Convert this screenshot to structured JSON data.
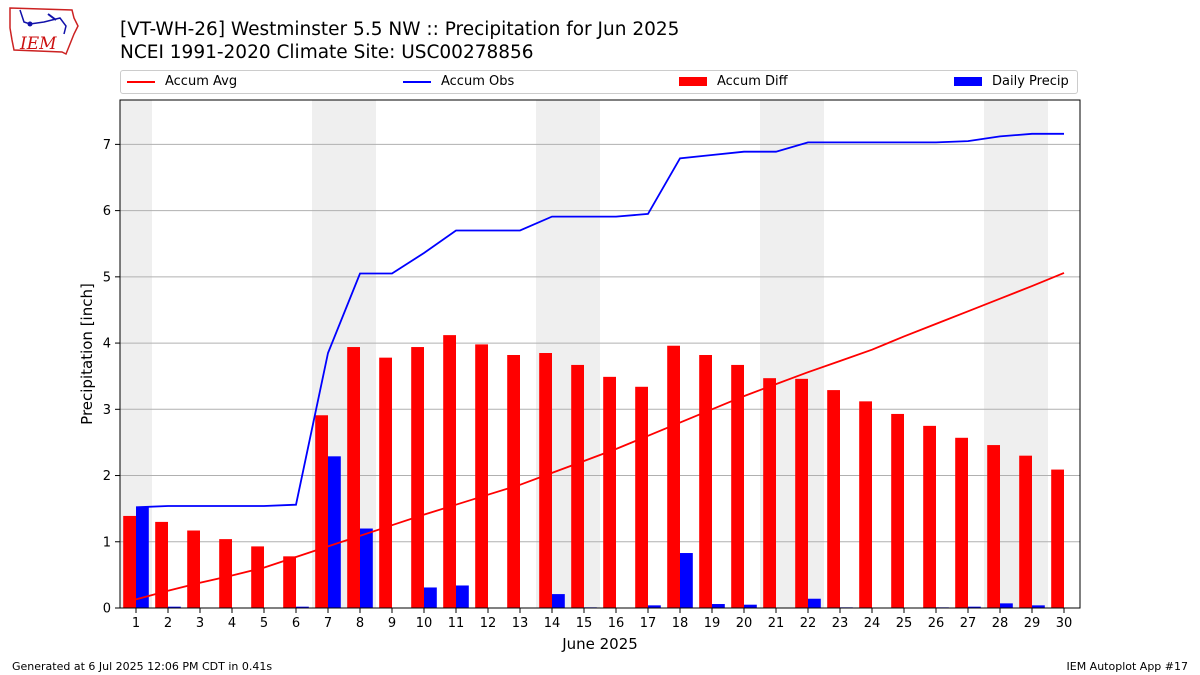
{
  "header": {
    "title_line1": "[VT-WH-26] Westminster 5.5 NW :: Precipitation for Jun 2025",
    "title_line2": "NCEI 1991-2020 Climate Site: USC00278856",
    "logo_text": "IEM"
  },
  "footer": {
    "left": "Generated at 6 Jul 2025 12:06 PM CDT in 0.41s",
    "right": "IEM Autoplot App #17"
  },
  "colors": {
    "avg": "#ff0000",
    "obs": "#0000ff",
    "diff": "#ff0000",
    "daily": "#0000ff",
    "weekend_shade": "#efefef"
  },
  "chart_data": {
    "type": "bar",
    "title": "[VT-WH-26] Westminster 5.5 NW :: Precipitation for Jun 2025",
    "subtitle": "NCEI 1991-2020 Climate Site: USC00278856",
    "xlabel": "June 2025",
    "ylabel": "Precipitation [inch]",
    "ylim": [
      0,
      7.67
    ],
    "yticks": [
      0,
      1,
      2,
      3,
      4,
      5,
      6,
      7
    ],
    "grid": "y",
    "legend_placement": "top",
    "x": [
      1,
      2,
      3,
      4,
      5,
      6,
      7,
      8,
      9,
      10,
      11,
      12,
      13,
      14,
      15,
      16,
      17,
      18,
      19,
      20,
      21,
      22,
      23,
      24,
      25,
      26,
      27,
      28,
      29,
      30
    ],
    "shaded_days": [
      1,
      7,
      8,
      14,
      15,
      21,
      22,
      28,
      29
    ],
    "series": [
      {
        "name": "Accum Avg",
        "kind": "line",
        "values": [
          0.13,
          0.26,
          0.38,
          0.49,
          0.61,
          0.77,
          0.93,
          1.09,
          1.25,
          1.41,
          1.56,
          1.71,
          1.86,
          2.04,
          2.22,
          2.4,
          2.6,
          2.8,
          3.0,
          3.2,
          3.38,
          3.56,
          3.73,
          3.9,
          4.1,
          4.29,
          4.48,
          4.67,
          4.86,
          5.06
        ]
      },
      {
        "name": "Accum Obs",
        "kind": "line",
        "values": [
          1.52,
          1.54,
          1.54,
          1.54,
          1.54,
          1.56,
          3.85,
          5.05,
          5.05,
          5.36,
          5.7,
          5.7,
          5.7,
          5.91,
          5.91,
          5.91,
          5.95,
          6.79,
          6.84,
          6.89,
          6.89,
          7.03,
          7.03,
          7.03,
          7.03,
          7.03,
          7.05,
          7.12,
          7.16,
          7.16
        ]
      },
      {
        "name": "Accum Diff",
        "kind": "bar",
        "values": [
          1.39,
          1.3,
          1.17,
          1.04,
          0.93,
          0.78,
          2.91,
          3.94,
          3.78,
          3.94,
          4.12,
          3.98,
          3.82,
          3.85,
          3.67,
          3.49,
          3.34,
          3.96,
          3.82,
          3.67,
          3.47,
          3.46,
          3.29,
          3.12,
          2.93,
          2.75,
          2.57,
          2.46,
          2.3,
          2.09
        ]
      },
      {
        "name": "Daily Precip",
        "kind": "bar",
        "values": [
          1.52,
          0.02,
          0.0,
          0.0,
          0.0,
          0.02,
          2.29,
          1.2,
          0.0,
          0.31,
          0.34,
          0.0,
          0.0,
          0.21,
          0.01,
          0.0,
          0.04,
          0.83,
          0.06,
          0.05,
          0.0,
          0.14,
          0.01,
          0.0,
          0.0,
          0.01,
          0.02,
          0.07,
          0.04,
          0.0
        ]
      }
    ]
  }
}
